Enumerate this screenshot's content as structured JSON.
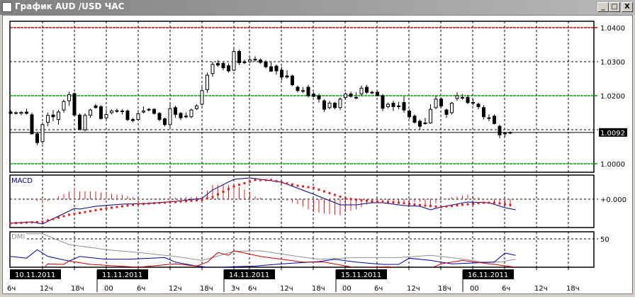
{
  "window": {
    "title": "График AUD /USD  ЧАС",
    "buttons": {
      "minimize": "_",
      "maximize": "□",
      "close": "X"
    }
  },
  "price_panel": {
    "y_ticks": [
      "1.0400",
      "1.0300",
      "1.0200",
      "1.0000"
    ],
    "y_tick_values": [
      1.04,
      1.03,
      1.02,
      1.0
    ],
    "current_price": "1.0092",
    "current_price_value": 1.0092,
    "levels": [
      {
        "value": 1.04,
        "color": "#c00000"
      },
      {
        "value": 1.02,
        "color": "#00a000"
      },
      {
        "value": 1.0,
        "color": "#00a000"
      }
    ],
    "candles": [
      [
        1.0152,
        1.0158,
        1.0145,
        1.0148
      ],
      [
        1.015,
        1.0153,
        1.0145,
        1.0149
      ],
      [
        1.0148,
        1.0155,
        1.0143,
        1.0151
      ],
      [
        1.0152,
        1.0162,
        1.0145,
        1.0148
      ],
      [
        1.0144,
        1.015,
        1.0085,
        1.0088
      ],
      [
        1.0088,
        1.0093,
        1.0055,
        1.0062
      ],
      [
        1.0065,
        1.0122,
        1.0058,
        1.0115
      ],
      [
        1.0122,
        1.015,
        1.011,
        1.0142
      ],
      [
        1.0143,
        1.0158,
        1.0125,
        1.0138
      ],
      [
        1.013,
        1.0158,
        1.0115,
        1.0152
      ],
      [
        1.0158,
        1.0188,
        1.015,
        1.0183
      ],
      [
        1.0185,
        1.0212,
        1.017,
        1.0203
      ],
      [
        1.0206,
        1.021,
        1.014,
        1.0143
      ],
      [
        1.0143,
        1.0148,
        1.01,
        1.01
      ],
      [
        1.01,
        1.0148,
        1.0095,
        1.0142
      ],
      [
        1.0143,
        1.0162,
        1.0135,
        1.0158
      ],
      [
        1.017,
        1.0176,
        1.0162,
        1.0165
      ],
      [
        1.0168,
        1.0172,
        1.013,
        1.0133
      ],
      [
        1.0135,
        1.016,
        1.013,
        1.0145
      ],
      [
        1.015,
        1.016,
        1.0146,
        1.0155
      ],
      [
        1.0156,
        1.0162,
        1.015,
        1.0154
      ],
      [
        1.0155,
        1.016,
        1.0145,
        1.0155
      ],
      [
        1.0155,
        1.016,
        1.0125,
        1.013
      ],
      [
        1.013,
        1.0135,
        1.0122,
        1.0127
      ],
      [
        1.013,
        1.0158,
        1.0126,
        1.0147
      ],
      [
        1.0152,
        1.0168,
        1.0148,
        1.0155
      ],
      [
        1.016,
        1.0164,
        1.0154,
        1.016
      ],
      [
        1.016,
        1.0163,
        1.0145,
        1.0148
      ],
      [
        1.0148,
        1.0152,
        1.0125,
        1.013
      ],
      [
        1.0132,
        1.0135,
        1.011,
        1.0115
      ],
      [
        1.0115,
        1.0175,
        1.01,
        1.0162
      ],
      [
        1.0165,
        1.017,
        1.0135,
        1.0145
      ],
      [
        1.0148,
        1.0152,
        1.0128,
        1.0135
      ],
      [
        1.014,
        1.015,
        1.0134,
        1.014
      ],
      [
        1.0138,
        1.0162,
        1.0134,
        1.0158
      ],
      [
        1.0162,
        1.0175,
        1.0158,
        1.017
      ],
      [
        1.0175,
        1.0232,
        1.017,
        1.0215
      ],
      [
        1.0218,
        1.0268,
        1.0208,
        1.026
      ],
      [
        1.0265,
        1.03,
        1.0256,
        1.0292
      ],
      [
        1.0295,
        1.0305,
        1.0285,
        1.029
      ],
      [
        1.0295,
        1.03,
        1.0275,
        1.0282
      ],
      [
        1.0288,
        1.0295,
        1.0268,
        1.0273
      ],
      [
        1.0275,
        1.034,
        1.0272,
        1.033
      ],
      [
        1.033,
        1.0335,
        1.029,
        1.0297
      ],
      [
        1.03,
        1.0306,
        1.0293,
        1.0297
      ],
      [
        1.03,
        1.0312,
        1.0296,
        1.0305
      ],
      [
        1.0307,
        1.0316,
        1.03,
        1.0307
      ],
      [
        1.0305,
        1.031,
        1.0294,
        1.0298
      ],
      [
        1.03,
        1.0304,
        1.028,
        1.0285
      ],
      [
        1.0285,
        1.03,
        1.027,
        1.0272
      ],
      [
        1.0287,
        1.0292,
        1.0262,
        1.0273
      ],
      [
        1.0275,
        1.0285,
        1.0245,
        1.0255
      ],
      [
        1.0258,
        1.0275,
        1.025,
        1.0255
      ],
      [
        1.0258,
        1.0262,
        1.0228,
        1.0232
      ],
      [
        1.0225,
        1.023,
        1.021,
        1.0215
      ],
      [
        1.0215,
        1.0225,
        1.0208,
        1.0215
      ],
      [
        1.0225,
        1.0232,
        1.0195,
        1.02
      ],
      [
        1.0205,
        1.0212,
        1.0195,
        1.0198
      ],
      [
        1.02,
        1.0206,
        1.018,
        1.019
      ],
      [
        1.0185,
        1.019,
        1.0152,
        1.016
      ],
      [
        1.0165,
        1.0185,
        1.016,
        1.0178
      ],
      [
        1.0178,
        1.0182,
        1.016,
        1.0165
      ],
      [
        1.0165,
        1.0195,
        1.0158,
        1.019
      ],
      [
        1.0195,
        1.021,
        1.019,
        1.0205
      ],
      [
        1.0205,
        1.0212,
        1.0195,
        1.0198
      ],
      [
        1.0195,
        1.021,
        1.019,
        1.0195
      ],
      [
        1.0205,
        1.023,
        1.02,
        1.0222
      ],
      [
        1.0225,
        1.0232,
        1.0205,
        1.021
      ],
      [
        1.021,
        1.0215,
        1.0205,
        1.021
      ],
      [
        1.021,
        1.0213,
        1.0198,
        1.02
      ],
      [
        1.02,
        1.0205,
        1.0155,
        1.0163
      ],
      [
        1.0168,
        1.018,
        1.0163,
        1.0175
      ],
      [
        1.0178,
        1.0185,
        1.0155,
        1.0168
      ],
      [
        1.017,
        1.0182,
        1.016,
        1.017
      ],
      [
        1.018,
        1.0198,
        1.015,
        1.0158
      ],
      [
        1.0155,
        1.016,
        1.0132,
        1.0138
      ],
      [
        1.014,
        1.0145,
        1.0118,
        1.0122
      ],
      [
        1.0125,
        1.013,
        1.01,
        1.011
      ],
      [
        1.012,
        1.0135,
        1.0115,
        1.012
      ],
      [
        1.012,
        1.0175,
        1.0118,
        1.016
      ],
      [
        1.0165,
        1.02,
        1.016,
        1.019
      ],
      [
        1.019,
        1.0195,
        1.0165,
        1.017
      ],
      [
        1.0158,
        1.0162,
        1.0135,
        1.0145
      ],
      [
        1.015,
        1.0182,
        1.0145,
        1.0178
      ],
      [
        1.0192,
        1.021,
        1.0185,
        1.02
      ],
      [
        1.0195,
        1.0205,
        1.0188,
        1.0195
      ],
      [
        1.0195,
        1.0202,
        1.0175,
        1.018
      ],
      [
        1.018,
        1.019,
        1.0172,
        1.018
      ],
      [
        1.0175,
        1.018,
        1.016,
        1.0168
      ],
      [
        1.0165,
        1.0172,
        1.013,
        1.0138
      ],
      [
        1.0135,
        1.0145,
        1.0125,
        1.0135
      ],
      [
        1.014,
        1.0145,
        1.0115,
        1.0118
      ],
      [
        1.011,
        1.0115,
        1.0075,
        1.0085
      ],
      [
        1.009,
        1.0093,
        1.008,
        1.009
      ],
      [
        1.009,
        1.0096,
        1.0087,
        1.0092
      ]
    ]
  },
  "macd_panel": {
    "label": "MACD",
    "zero_label": "+0.000",
    "macd_line": [
      [
        0,
        -0.0034
      ],
      [
        4,
        -0.0032
      ],
      [
        6,
        -0.0035
      ],
      [
        9,
        -0.0024
      ],
      [
        12,
        -0.0013
      ],
      [
        13,
        -0.0014
      ],
      [
        16,
        -0.001
      ],
      [
        21,
        -0.0007
      ],
      [
        26,
        -0.0006
      ],
      [
        31,
        -0.0003
      ],
      [
        36,
        0.0001
      ],
      [
        38,
        0.0013
      ],
      [
        42,
        0.0028
      ],
      [
        45,
        0.003
      ],
      [
        51,
        0.0024
      ],
      [
        57,
        0.0007
      ],
      [
        62,
        -0.0008
      ],
      [
        65,
        -0.0008
      ],
      [
        68,
        -0.0005
      ],
      [
        70,
        -0.0005
      ],
      [
        74,
        -0.0009
      ],
      [
        77,
        -0.001
      ],
      [
        79,
        -0.0015
      ],
      [
        81,
        -0.0011
      ],
      [
        86,
        -0.0004
      ],
      [
        90,
        -0.0005
      ],
      [
        93,
        -0.0012
      ],
      [
        95,
        -0.0015
      ]
    ],
    "signal_line": [
      [
        0,
        -0.0034
      ],
      [
        6,
        -0.0032
      ],
      [
        11,
        -0.0022
      ],
      [
        18,
        -0.0013
      ],
      [
        24,
        -0.0007
      ],
      [
        31,
        -0.0004
      ],
      [
        36,
        -0.0001
      ],
      [
        38,
        0.0003
      ],
      [
        42,
        0.0018
      ],
      [
        46,
        0.0027
      ],
      [
        49,
        0.0027
      ],
      [
        54,
        0.0019
      ],
      [
        57,
        0.0016
      ],
      [
        61,
        0.0006
      ],
      [
        63,
        0.0001
      ],
      [
        68,
        -0.0003
      ],
      [
        73,
        -0.0005
      ],
      [
        78,
        -0.0009
      ],
      [
        81,
        -0.0011
      ],
      [
        85,
        -0.0008
      ],
      [
        89,
        -0.0005
      ],
      [
        91,
        -0.0005
      ],
      [
        93,
        -0.0007
      ],
      [
        95,
        -0.0009
      ]
    ],
    "colors": {
      "macd": "#000080",
      "signal": "#e02020",
      "histogram": "#e02020"
    }
  },
  "dmi_panel": {
    "label": "DMI",
    "level_label": "50",
    "level_value": 50,
    "adx": [
      [
        0,
        59
      ],
      [
        6,
        59
      ],
      [
        11,
        40
      ],
      [
        18,
        31
      ],
      [
        24,
        26
      ],
      [
        31,
        19
      ],
      [
        36,
        12
      ],
      [
        38,
        17
      ],
      [
        42,
        28
      ],
      [
        47,
        29
      ],
      [
        54,
        19
      ],
      [
        58,
        14
      ],
      [
        65,
        17
      ],
      [
        73,
        17
      ],
      [
        79,
        21
      ],
      [
        83,
        17
      ],
      [
        89,
        9
      ],
      [
        92,
        9
      ],
      [
        95,
        14
      ]
    ],
    "plus_di": [
      [
        0,
        19
      ],
      [
        3,
        16
      ],
      [
        5,
        31
      ],
      [
        7,
        19
      ],
      [
        11,
        11
      ],
      [
        13,
        19
      ],
      [
        18,
        14
      ],
      [
        22,
        14
      ],
      [
        29,
        17
      ],
      [
        31,
        9
      ],
      [
        35,
        2
      ],
      [
        38,
        -1
      ],
      [
        42,
        1
      ],
      [
        46,
        2
      ],
      [
        51,
        6
      ],
      [
        58,
        10
      ],
      [
        61,
        14
      ],
      [
        65,
        9
      ],
      [
        70,
        5
      ],
      [
        73,
        5
      ],
      [
        75,
        16
      ],
      [
        79,
        12
      ],
      [
        83,
        6
      ],
      [
        91,
        9
      ],
      [
        93,
        25
      ],
      [
        95,
        21
      ]
    ],
    "minus_di": [
      [
        6,
        -4
      ],
      [
        7,
        6
      ],
      [
        10,
        5
      ],
      [
        11,
        11
      ],
      [
        15,
        5
      ],
      [
        24,
        0
      ],
      [
        31,
        6
      ],
      [
        35,
        2
      ],
      [
        37,
        9
      ],
      [
        39,
        26
      ],
      [
        41,
        21
      ],
      [
        42,
        29
      ],
      [
        47,
        19
      ],
      [
        51,
        14
      ],
      [
        55,
        9
      ],
      [
        59,
        9
      ],
      [
        65,
        -1
      ],
      [
        71,
        1
      ],
      [
        78,
        -6
      ],
      [
        81,
        6
      ],
      [
        85,
        12
      ],
      [
        91,
        5
      ],
      [
        95,
        0
      ]
    ],
    "colors": {
      "adx": "#909090",
      "plus_di": "#0000a0",
      "minus_di": "#c00000"
    }
  },
  "time_axis": {
    "ticks": [
      "6ч",
      "12ч",
      "18ч",
      "00",
      "6ч",
      "12ч",
      "18ч",
      "3ч",
      "6ч",
      "12ч",
      "18ч",
      "00",
      "6ч",
      "12ч",
      "18ч",
      "00",
      "6ч",
      "12ч",
      "18ч"
    ],
    "dates": [
      "10.11.2011",
      "11.11.2011",
      "14.11.2011",
      "15.11.2011",
      "16.11.2011"
    ]
  }
}
